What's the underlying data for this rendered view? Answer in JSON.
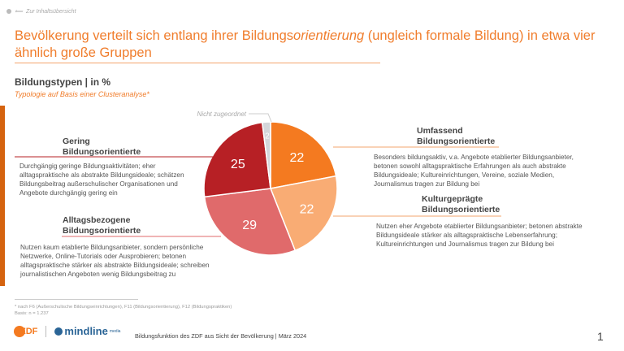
{
  "nav": {
    "back_label": "Zur Inhaltsübersicht"
  },
  "header": {
    "title_part1": "Bevölkerung verteilt sich entlang ihrer Bildungs",
    "title_italic": "orientierung",
    "title_part2": " (ungleich formale Bildung) in etwa vier ähnlich große Gruppen"
  },
  "chart_title": "Bildungstypen | in %",
  "chart_subtitle": "Typologie auf Basis einer Clusteranalyse*",
  "chart_data": {
    "type": "pie",
    "unit": "%",
    "slices": [
      {
        "name": "Umfassend Bildungsorientierte",
        "value": 22,
        "color": "#f47a20"
      },
      {
        "name": "Kulturgeprägte Bildungsorientierte",
        "value": 22,
        "color": "#f9ac74"
      },
      {
        "name": "Alltagsbezogene Bildungsorientierte",
        "value": 29,
        "color": "#e06a6b"
      },
      {
        "name": "Gering Bildungsorientierte",
        "value": 25,
        "color": "#b72025"
      },
      {
        "name": "Nicht zugeordnet",
        "value": 2,
        "color": "#d4d6da"
      }
    ]
  },
  "groups": {
    "gering": {
      "title1": "Gering",
      "title2": "Bildungsorientierte",
      "desc": "Durchgängig geringe Bildungsaktivitäten; eher alltagspraktische als abstrakte Bildungsideale; schätzen Bildungsbeitrag außerschulischer Organisationen und Angebote durchgängig gering ein"
    },
    "alltag": {
      "title1": "Alltagsbezogene",
      "title2": "Bildungsorientierte",
      "desc": "Nutzen kaum etablierte Bildungsanbieter, sondern persönliche Netzwerke, Online-Tutorials oder Ausprobieren; betonen alltagspraktische stärker als abstrakte Bildungsideale; schreiben journalistischen Angeboten wenig Bildungsbeitrag zu"
    },
    "umfassend": {
      "title1": "Umfassend",
      "title2": "Bildungsorientierte",
      "desc": "Besonders bildungsaktiv, v.a. Angebote etablierter Bildungsanbieter, betonen sowohl alltagspraktische Erfahrungen als auch abstrakte Bildungsideale; Kultureinrichtungen, Vereine, soziale Medien, Journalismus tragen zur Bildung bei"
    },
    "kultur": {
      "title1": "Kulturgeprägte",
      "title2": "Bildungsorientierte",
      "desc": "Nutzen eher Angebote etablierter Bildungsanbieter; betonen abstrakte Bildungsideale stärker als alltagspraktische Lebenserfahrung; Kultureinrichtungen und Journalismus tragen zur Bildung bei"
    }
  },
  "footer": {
    "footnote": "* nach F6 (Außerschulische Bildungseinrichtungen), F11 (Bildungsorientierung), F12 (Bildungspraktiken)",
    "basis": "Basis: n = 1.237",
    "logo_zdf": "ZDF",
    "logo_mindline": "mindline",
    "logo_media": "media",
    "text": "Bildungsfunktion des ZDF aus Sicht der Bevölkerung | März 2024",
    "page": "1"
  }
}
